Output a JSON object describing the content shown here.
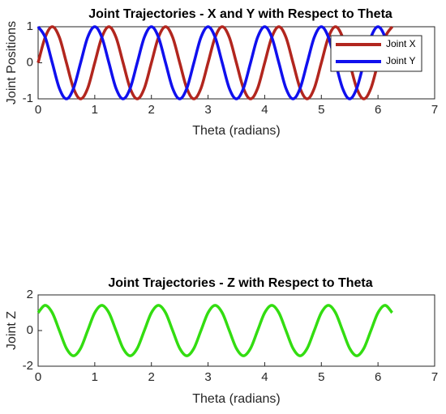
{
  "chart_data": [
    {
      "type": "line",
      "title": "Joint Trajectories - X and Y with Respect to Theta",
      "x_label": "Theta (radians)",
      "y_label": "Joint Positions",
      "x": [
        0,
        0.125,
        0.25,
        0.375,
        0.5,
        0.625,
        0.75,
        0.875,
        1,
        1.125,
        1.25,
        1.375,
        1.5,
        1.625,
        1.75,
        1.875,
        2,
        2.125,
        2.25,
        2.375,
        2.5,
        2.625,
        2.75,
        2.875,
        3,
        3.125,
        3.25,
        3.375,
        3.5,
        3.625,
        3.75,
        3.875,
        4,
        4.125,
        4.25,
        4.375,
        4.5,
        4.625,
        4.75,
        4.875,
        5,
        5.125,
        5.25,
        5.375,
        5.5,
        5.625,
        5.75,
        5.875,
        6,
        6.125,
        6.25
      ],
      "series": [
        {
          "name": "Joint X",
          "color": "#b2261e",
          "values": [
            0,
            0.707,
            1,
            0.707,
            0,
            -0.707,
            -1,
            -0.707,
            0,
            0.707,
            1,
            0.707,
            0,
            -0.707,
            -1,
            -0.707,
            0,
            0.707,
            1,
            0.707,
            0,
            -0.707,
            -1,
            -0.707,
            0,
            0.707,
            1,
            0.707,
            0,
            -0.707,
            -1,
            -0.707,
            0,
            0.707,
            1,
            0.707,
            0,
            -0.707,
            -1,
            -0.707,
            0,
            0.707,
            1,
            0.707,
            0,
            -0.707,
            -1,
            -0.707,
            0,
            0.707,
            1
          ]
        },
        {
          "name": "Joint Y",
          "color": "#1010ee",
          "values": [
            1,
            0.707,
            0,
            -0.707,
            -1,
            -0.707,
            0,
            0.707,
            1,
            0.707,
            0,
            -0.707,
            -1,
            -0.707,
            0,
            0.707,
            1,
            0.707,
            0,
            -0.707,
            -1,
            -0.707,
            0,
            0.707,
            1,
            0.707,
            0,
            -0.707,
            -1,
            -0.707,
            0,
            0.707,
            1,
            0.707,
            0,
            -0.707,
            -1,
            -0.707,
            0,
            0.707,
            1,
            0.707,
            0,
            -0.707,
            -1,
            -0.707,
            0,
            0.707,
            1,
            0.707,
            0
          ]
        }
      ],
      "xlim": [
        0,
        7
      ],
      "xticks": [
        0,
        1,
        2,
        3,
        4,
        5,
        6,
        7
      ],
      "ylim": [
        -1,
        1
      ],
      "yticks": [
        -1,
        0,
        1
      ],
      "legend": "upper right"
    },
    {
      "type": "line",
      "title": "Joint Trajectories - Z with Respect to Theta",
      "x_label": "Theta (radians)",
      "y_label": "Joint Z",
      "x": [
        0,
        0.125,
        0.25,
        0.375,
        0.5,
        0.625,
        0.75,
        0.875,
        1,
        1.125,
        1.25,
        1.375,
        1.5,
        1.625,
        1.75,
        1.875,
        2,
        2.125,
        2.25,
        2.375,
        2.5,
        2.625,
        2.75,
        2.875,
        3,
        3.125,
        3.25,
        3.375,
        3.5,
        3.625,
        3.75,
        3.875,
        4,
        4.125,
        4.25,
        4.375,
        4.5,
        4.625,
        4.75,
        4.875,
        5,
        5.125,
        5.25,
        5.375,
        5.5,
        5.625,
        5.75,
        5.875,
        6,
        6.125,
        6.25
      ],
      "values": [
        1,
        1.414,
        1,
        0,
        -1,
        -1.414,
        -1,
        0,
        1,
        1.414,
        1,
        0,
        -1,
        -1.414,
        -1,
        0,
        1,
        1.414,
        1,
        0,
        -1,
        -1.414,
        -1,
        0,
        1,
        1.414,
        1,
        0,
        -1,
        -1.414,
        -1,
        0,
        1,
        1.414,
        1,
        0,
        -1,
        -1.414,
        -1,
        0,
        1,
        1.414,
        1,
        0,
        -1,
        -1.414,
        -1,
        0,
        1,
        1.414,
        1
      ],
      "color": "#33dd11",
      "xlim": [
        0,
        7
      ],
      "xticks": [
        0,
        1,
        2,
        3,
        4,
        5,
        6,
        7
      ],
      "ylim": [
        -2,
        2
      ],
      "yticks": [
        -2,
        0,
        2
      ]
    }
  ]
}
